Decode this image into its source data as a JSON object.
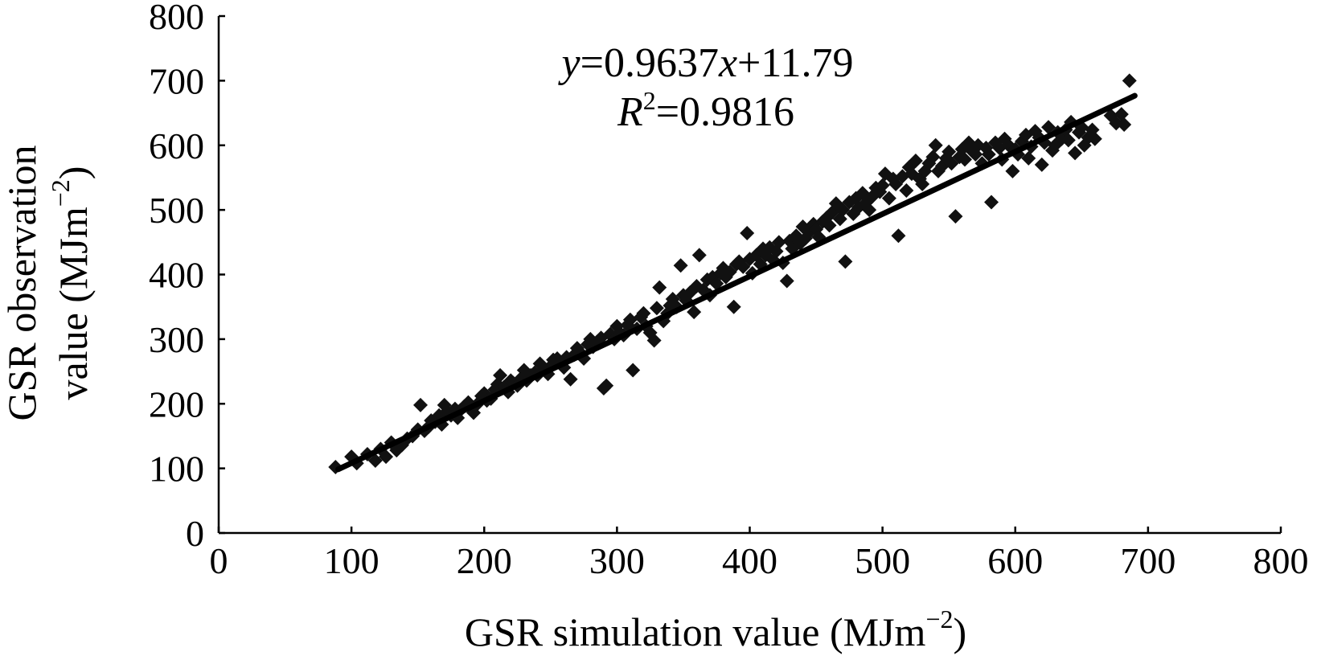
{
  "chart_data": {
    "type": "scatter",
    "xlabel": "GSR simulation value (MJm",
    "xlabel_unit_exp": "−2",
    "xlabel_close": ")",
    "ylabel_line1": "GSR observation",
    "ylabel_line2": "value (MJm",
    "ylabel_unit_exp": "−2",
    "ylabel_close": ")",
    "xlim": [
      0,
      800
    ],
    "ylim": [
      0,
      800
    ],
    "x_ticks": [
      0,
      100,
      200,
      300,
      400,
      500,
      600,
      700,
      800
    ],
    "y_ticks": [
      0,
      100,
      200,
      300,
      400,
      500,
      600,
      700,
      800
    ],
    "grid": false,
    "annotation": {
      "equation_var_y": "y",
      "equation_mid": "=0.9637",
      "equation_var_x": "x",
      "equation_end": "+11.79",
      "r2_var": "R",
      "r2_exp": "2",
      "r2_value": "=0.9816"
    },
    "fit_line": {
      "slope": 0.9637,
      "intercept": 11.79,
      "x_range": [
        90,
        690
      ]
    },
    "marker_color": "#111111",
    "series": [
      {
        "marker": "diamond",
        "points": [
          [
            88,
            102
          ],
          [
            100,
            118
          ],
          [
            104,
            108
          ],
          [
            112,
            122
          ],
          [
            118,
            112
          ],
          [
            122,
            130
          ],
          [
            126,
            118
          ],
          [
            130,
            140
          ],
          [
            134,
            128
          ],
          [
            138,
            136
          ],
          [
            142,
            146
          ],
          [
            146,
            150
          ],
          [
            150,
            160
          ],
          [
            152,
            198
          ],
          [
            155,
            158
          ],
          [
            158,
            164
          ],
          [
            160,
            174
          ],
          [
            163,
            172
          ],
          [
            166,
            182
          ],
          [
            168,
            168
          ],
          [
            170,
            198
          ],
          [
            172,
            188
          ],
          [
            175,
            182
          ],
          [
            178,
            192
          ],
          [
            180,
            178
          ],
          [
            182,
            190
          ],
          [
            185,
            196
          ],
          [
            188,
            202
          ],
          [
            190,
            196
          ],
          [
            192,
            186
          ],
          [
            195,
            200
          ],
          [
            198,
            212
          ],
          [
            200,
            216
          ],
          [
            202,
            205
          ],
          [
            205,
            208
          ],
          [
            208,
            222
          ],
          [
            210,
            230
          ],
          [
            212,
            244
          ],
          [
            215,
            226
          ],
          [
            218,
            218
          ],
          [
            220,
            236
          ],
          [
            222,
            232
          ],
          [
            225,
            228
          ],
          [
            228,
            240
          ],
          [
            230,
            252
          ],
          [
            232,
            236
          ],
          [
            235,
            244
          ],
          [
            238,
            248
          ],
          [
            240,
            244
          ],
          [
            242,
            262
          ],
          [
            245,
            254
          ],
          [
            248,
            246
          ],
          [
            250,
            258
          ],
          [
            252,
            268
          ],
          [
            255,
            270
          ],
          [
            258,
            262
          ],
          [
            260,
            256
          ],
          [
            262,
            272
          ],
          [
            265,
            238
          ],
          [
            268,
            276
          ],
          [
            270,
            286
          ],
          [
            272,
            280
          ],
          [
            275,
            270
          ],
          [
            278,
            292
          ],
          [
            280,
            300
          ],
          [
            282,
            288
          ],
          [
            285,
            296
          ],
          [
            288,
            302
          ],
          [
            290,
            224
          ],
          [
            292,
            228
          ],
          [
            295,
            308
          ],
          [
            298,
            300
          ],
          [
            300,
            320
          ],
          [
            302,
            310
          ],
          [
            305,
            306
          ],
          [
            308,
            322
          ],
          [
            310,
            330
          ],
          [
            312,
            252
          ],
          [
            315,
            316
          ],
          [
            318,
            334
          ],
          [
            320,
            340
          ],
          [
            322,
            320
          ],
          [
            325,
            310
          ],
          [
            328,
            298
          ],
          [
            330,
            348
          ],
          [
            332,
            380
          ],
          [
            335,
            328
          ],
          [
            338,
            340
          ],
          [
            340,
            352
          ],
          [
            342,
            362
          ],
          [
            345,
            350
          ],
          [
            348,
            414
          ],
          [
            350,
            368
          ],
          [
            352,
            360
          ],
          [
            355,
            372
          ],
          [
            358,
            342
          ],
          [
            360,
            382
          ],
          [
            362,
            430
          ],
          [
            365,
            376
          ],
          [
            368,
            392
          ],
          [
            370,
            368
          ],
          [
            372,
            396
          ],
          [
            375,
            386
          ],
          [
            378,
            402
          ],
          [
            380,
            410
          ],
          [
            382,
            396
          ],
          [
            385,
            404
          ],
          [
            388,
            350
          ],
          [
            390,
            416
          ],
          [
            392,
            420
          ],
          [
            395,
            412
          ],
          [
            398,
            464
          ],
          [
            400,
            424
          ],
          [
            402,
            402
          ],
          [
            405,
            430
          ],
          [
            408,
            416
          ],
          [
            410,
            440
          ],
          [
            412,
            430
          ],
          [
            415,
            442
          ],
          [
            418,
            422
          ],
          [
            420,
            436
          ],
          [
            422,
            450
          ],
          [
            425,
            418
          ],
          [
            428,
            390
          ],
          [
            430,
            452
          ],
          [
            432,
            440
          ],
          [
            435,
            460
          ],
          [
            438,
            448
          ],
          [
            440,
            474
          ],
          [
            442,
            456
          ],
          [
            445,
            466
          ],
          [
            448,
            478
          ],
          [
            450,
            470
          ],
          [
            452,
            458
          ],
          [
            455,
            482
          ],
          [
            458,
            488
          ],
          [
            460,
            476
          ],
          [
            462,
            496
          ],
          [
            465,
            510
          ],
          [
            468,
            486
          ],
          [
            470,
            500
          ],
          [
            472,
            420
          ],
          [
            475,
            512
          ],
          [
            478,
            494
          ],
          [
            480,
            518
          ],
          [
            482,
            504
          ],
          [
            485,
            526
          ],
          [
            488,
            512
          ],
          [
            490,
            500
          ],
          [
            492,
            520
          ],
          [
            495,
            534
          ],
          [
            498,
            528
          ],
          [
            500,
            538
          ],
          [
            502,
            556
          ],
          [
            505,
            518
          ],
          [
            508,
            548
          ],
          [
            510,
            540
          ],
          [
            512,
            460
          ],
          [
            515,
            552
          ],
          [
            518,
            530
          ],
          [
            520,
            566
          ],
          [
            522,
            556
          ],
          [
            525,
            576
          ],
          [
            528,
            548
          ],
          [
            530,
            540
          ],
          [
            532,
            560
          ],
          [
            535,
            572
          ],
          [
            538,
            582
          ],
          [
            540,
            600
          ],
          [
            542,
            560
          ],
          [
            545,
            568
          ],
          [
            548,
            580
          ],
          [
            550,
            590
          ],
          [
            552,
            572
          ],
          [
            555,
            490
          ],
          [
            558,
            582
          ],
          [
            560,
            594
          ],
          [
            562,
            578
          ],
          [
            565,
            604
          ],
          [
            568,
            590
          ],
          [
            570,
            586
          ],
          [
            572,
            600
          ],
          [
            575,
            572
          ],
          [
            578,
            596
          ],
          [
            580,
            586
          ],
          [
            582,
            512
          ],
          [
            585,
            604
          ],
          [
            588,
            596
          ],
          [
            590,
            578
          ],
          [
            592,
            610
          ],
          [
            595,
            600
          ],
          [
            598,
            560
          ],
          [
            600,
            594
          ],
          [
            602,
            586
          ],
          [
            605,
            606
          ],
          [
            608,
            616
          ],
          [
            610,
            580
          ],
          [
            612,
            598
          ],
          [
            615,
            622
          ],
          [
            618,
            612
          ],
          [
            620,
            570
          ],
          [
            622,
            604
          ],
          [
            625,
            628
          ],
          [
            628,
            592
          ],
          [
            630,
            600
          ],
          [
            632,
            620
          ],
          [
            635,
            610
          ],
          [
            638,
            624
          ],
          [
            640,
            608
          ],
          [
            642,
            636
          ],
          [
            645,
            588
          ],
          [
            648,
            620
          ],
          [
            650,
            628
          ],
          [
            652,
            600
          ],
          [
            655,
            612
          ],
          [
            658,
            624
          ],
          [
            660,
            610
          ],
          [
            672,
            646
          ],
          [
            676,
            634
          ],
          [
            680,
            648
          ],
          [
            682,
            632
          ],
          [
            686,
            700
          ]
        ]
      }
    ]
  }
}
